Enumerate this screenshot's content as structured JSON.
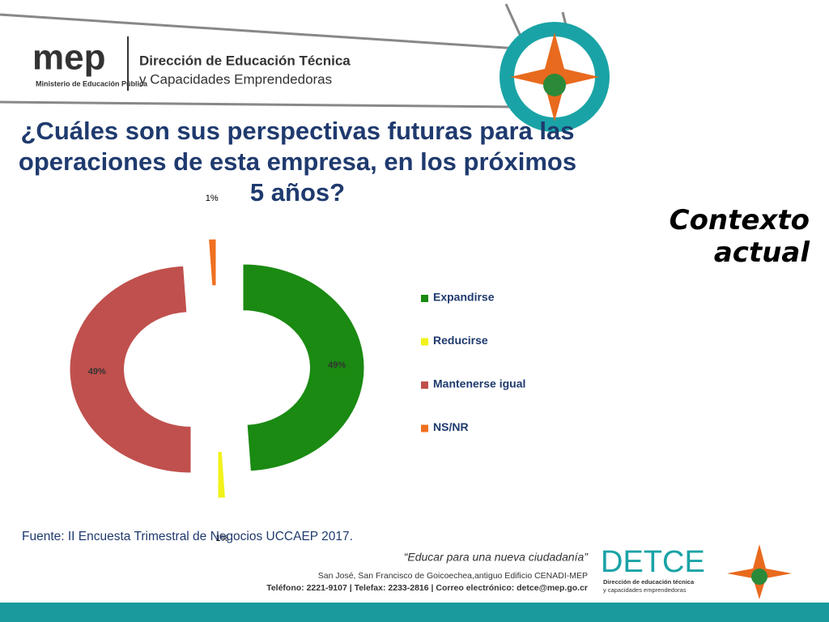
{
  "header": {
    "logo": "mep",
    "ministry": "Ministerio de Educación Pública",
    "line1": "Dirección de Educación Técnica",
    "line2": "y Capacidades Emprendedoras"
  },
  "chart_data": {
    "type": "donut",
    "title": "¿Cuáles son sus perspectivas  futuras para las operaciones de esta empresa, en los próximos 5 años?",
    "categories": [
      "Expandirse",
      "Reducirse",
      "Mantenerse igual",
      "NS/NR"
    ],
    "values": [
      49,
      1,
      49,
      1
    ],
    "value_labels": [
      "49%",
      "1%",
      "49%",
      "1%"
    ],
    "colors": [
      "#1a8a12",
      "#f2f21a",
      "#c0504d",
      "#f07020"
    ],
    "legend": "right"
  },
  "context": "Contexto actual",
  "source": "Fuente: II Encuesta Trimestral de Negocios UCCAEP 2017.",
  "footer": {
    "motto": "“Educar para una nueva ciudadanía”",
    "address": "San José, San Francisco de Goicoechea,antiguo Edificio CENADI-MEP",
    "contact": "Teléfono: 2221-9107 | Telefax: 2233-2816 | Correo electrónico: detce@mep.go.cr",
    "brand": "DETCE",
    "brand_line1": "Dirección de educación técnica",
    "brand_line2": "y capacidades emprendedoras"
  }
}
